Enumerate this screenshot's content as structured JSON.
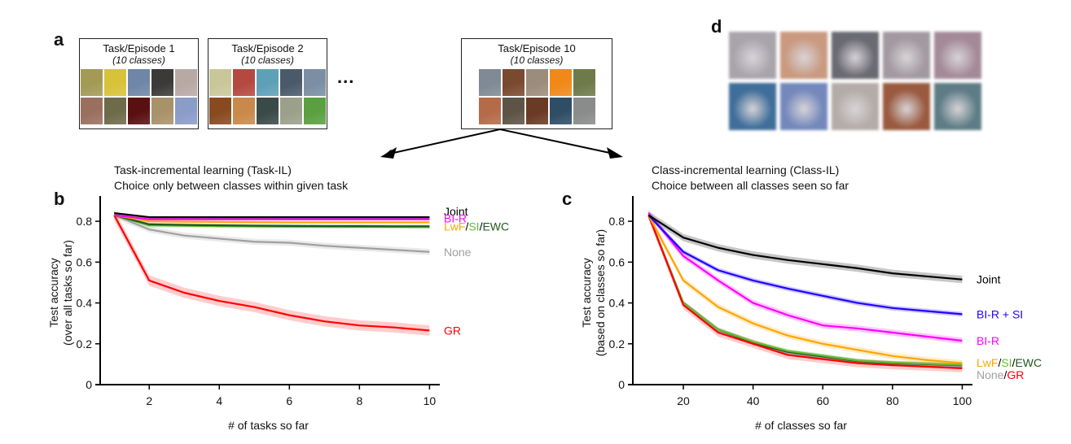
{
  "panels": {
    "a": {
      "label": "a"
    },
    "b": {
      "label": "b"
    },
    "c": {
      "label": "c"
    },
    "d": {
      "label": "d"
    }
  },
  "tasks": [
    {
      "title": "Task/Episode 1",
      "subtitle": "(10 classes)",
      "thumb_colors": [
        "#a39a55",
        "#d8c23a",
        "#6f86a8",
        "#3b3a38",
        "#b9a9a5",
        "#9b6f5e",
        "#6f6a48",
        "#5a0f10",
        "#a8926a",
        "#8a9cc8"
      ]
    },
    {
      "title": "Task/Episode 2",
      "subtitle": "(10 classes)",
      "thumb_colors": [
        "#c9c79a",
        "#b54940",
        "#5ea0b8",
        "#4a5a6a",
        "#7b8ea4",
        "#8a4a20",
        "#c9894a",
        "#3a4a48",
        "#9aa08a",
        "#5aa040"
      ]
    },
    {
      "title": "Task/Episode 10",
      "subtitle": "(10 classes)",
      "thumb_colors": [
        "#7f8a96",
        "#7a4a30",
        "#9c8c7c",
        "#f0891a",
        "#6f7a4a",
        "#b56a48",
        "#5e5446",
        "#6a3a22",
        "#2e4e66",
        "#8a8c8c"
      ]
    }
  ],
  "ellipsis": "...",
  "generated_samples": {
    "colors": [
      "#a9a4ac",
      "#c99a80",
      "#6a6a72",
      "#a29aa0",
      "#a48a98",
      "#3f6e9a",
      "#7488bc",
      "#b4aca8",
      "#9a5a40",
      "#5e7c86"
    ]
  },
  "task_il": {
    "heading_line1": "Task-incremental learning (Task-IL)",
    "heading_line2": "Choice only between classes within given task"
  },
  "class_il": {
    "heading_line1": "Class-incremental learning (Class-IL)",
    "heading_line2": "Choice between all classes seen so far"
  },
  "colors": {
    "joint": "#000000",
    "bir": "#ff00ff",
    "bir_si": "#2200ff",
    "lwf": "#ffa500",
    "si": "#66bb33",
    "ewc": "#1e5a1e",
    "none": "#a0a0a0",
    "gr": "#ff0000"
  },
  "chart_data": [
    {
      "type": "line",
      "panel": "b",
      "title": "Task-incremental learning (Task-IL)",
      "xlabel": "# of tasks so far",
      "ylabel_line1": "Test accuracy",
      "ylabel_line2": "(over all tasks so far)",
      "xlim": [
        0.6,
        10.2
      ],
      "ylim": [
        0,
        0.9
      ],
      "xticks": [
        2,
        4,
        6,
        8,
        10
      ],
      "xtick_labels": [
        "2",
        "4",
        "6",
        "8",
        "10"
      ],
      "yticks": [
        0,
        0.2,
        0.4,
        0.6,
        0.8
      ],
      "ytick_labels": [
        "0",
        "0.2",
        "0.4",
        "0.6",
        "0.8"
      ],
      "grid": false,
      "legend": "inline-right",
      "x": [
        1,
        2,
        3,
        4,
        5,
        6,
        7,
        8,
        9,
        10
      ],
      "series": [
        {
          "name": "None",
          "color_key": "none",
          "values": [
            0.83,
            0.76,
            0.73,
            0.715,
            0.7,
            0.695,
            0.68,
            0.67,
            0.66,
            0.65
          ],
          "band": 0.015
        },
        {
          "name": "GR",
          "color_key": "gr",
          "values": [
            0.83,
            0.51,
            0.45,
            0.41,
            0.38,
            0.34,
            0.31,
            0.29,
            0.28,
            0.265
          ],
          "band": 0.025
        },
        {
          "name": "SI",
          "color_key": "si",
          "values": [
            0.83,
            0.78,
            0.778,
            0.776,
            0.775,
            0.774,
            0.774,
            0.773,
            0.773,
            0.772
          ],
          "band": 0.01
        },
        {
          "name": "EWC",
          "color_key": "ewc",
          "values": [
            0.83,
            0.785,
            0.782,
            0.78,
            0.778,
            0.777,
            0.776,
            0.776,
            0.775,
            0.775
          ],
          "band": 0.008
        },
        {
          "name": "LwF",
          "color_key": "lwf",
          "values": [
            0.83,
            0.8,
            0.798,
            0.797,
            0.796,
            0.795,
            0.795,
            0.795,
            0.795,
            0.795
          ],
          "band": 0.006
        },
        {
          "name": "BI-R",
          "color_key": "bir",
          "values": [
            0.83,
            0.81,
            0.81,
            0.81,
            0.81,
            0.81,
            0.81,
            0.81,
            0.81,
            0.81
          ],
          "band": 0.006
        },
        {
          "name": "Joint",
          "color_key": "joint",
          "values": [
            0.84,
            0.82,
            0.82,
            0.82,
            0.82,
            0.82,
            0.82,
            0.82,
            0.82,
            0.82
          ],
          "band": 0.005
        }
      ],
      "labels": [
        {
          "parts": [
            {
              "text": "Joint",
              "color_key": "joint"
            }
          ],
          "y": 0.848
        },
        {
          "parts": [
            {
              "text": "BI-R",
              "color_key": "bir"
            }
          ],
          "y": 0.815
        },
        {
          "parts": [
            {
              "text": "LwF",
              "color_key": "lwf"
            },
            {
              "text": "/",
              "color_key": "joint"
            },
            {
              "text": "SI",
              "color_key": "si"
            },
            {
              "text": "/",
              "color_key": "joint"
            },
            {
              "text": "EWC",
              "color_key": "ewc"
            }
          ],
          "y": 0.775
        },
        {
          "parts": [
            {
              "text": "None",
              "color_key": "none"
            }
          ],
          "y": 0.65
        },
        {
          "parts": [
            {
              "text": "GR",
              "color_key": "gr"
            }
          ],
          "y": 0.265
        }
      ]
    },
    {
      "type": "line",
      "panel": "c",
      "title": "Class-incremental learning (Class-IL)",
      "xlabel": "# of classes so far",
      "ylabel_line1": "Test accuracy",
      "ylabel_line2": "(based on classes so far)",
      "xlim": [
        5.5,
        102
      ],
      "ylim": [
        0,
        0.9
      ],
      "xticks": [
        20,
        40,
        60,
        80,
        100
      ],
      "xtick_labels": [
        "20",
        "40",
        "60",
        "80",
        "100"
      ],
      "yticks": [
        0,
        0.2,
        0.4,
        0.6,
        0.8
      ],
      "ytick_labels": [
        "0",
        "0.2",
        "0.4",
        "0.6",
        "0.8"
      ],
      "grid": false,
      "legend": "inline-right",
      "x": [
        10,
        20,
        30,
        40,
        50,
        60,
        70,
        80,
        90,
        100
      ],
      "series": [
        {
          "name": "None",
          "color_key": "none",
          "values": [
            0.83,
            0.395,
            0.26,
            0.205,
            0.155,
            0.13,
            0.11,
            0.1,
            0.092,
            0.085
          ],
          "band": 0.01
        },
        {
          "name": "EWC",
          "color_key": "ewc",
          "values": [
            0.83,
            0.4,
            0.27,
            0.205,
            0.16,
            0.138,
            0.115,
            0.105,
            0.1,
            0.095
          ],
          "band": 0.01
        },
        {
          "name": "SI",
          "color_key": "si",
          "values": [
            0.83,
            0.4,
            0.27,
            0.21,
            0.165,
            0.142,
            0.118,
            0.108,
            0.102,
            0.097
          ],
          "band": 0.01
        },
        {
          "name": "GR",
          "color_key": "gr",
          "values": [
            0.83,
            0.39,
            0.255,
            0.2,
            0.145,
            0.125,
            0.105,
            0.095,
            0.088,
            0.08
          ],
          "band": 0.02
        },
        {
          "name": "LwF",
          "color_key": "lwf",
          "values": [
            0.83,
            0.51,
            0.38,
            0.3,
            0.24,
            0.2,
            0.17,
            0.14,
            0.12,
            0.105
          ],
          "band": 0.015
        },
        {
          "name": "BI-R",
          "color_key": "bir",
          "values": [
            0.84,
            0.63,
            0.51,
            0.4,
            0.34,
            0.29,
            0.275,
            0.255,
            0.235,
            0.215
          ],
          "band": 0.015
        },
        {
          "name": "BI-R + SI",
          "color_key": "bir_si",
          "values": [
            0.83,
            0.65,
            0.56,
            0.51,
            0.47,
            0.435,
            0.4,
            0.375,
            0.36,
            0.345
          ],
          "band": 0.012
        },
        {
          "name": "Joint",
          "color_key": "joint",
          "values": [
            0.83,
            0.72,
            0.67,
            0.635,
            0.61,
            0.59,
            0.57,
            0.545,
            0.53,
            0.515
          ],
          "band": 0.018
        }
      ],
      "labels": [
        {
          "parts": [
            {
              "text": "Joint",
              "color_key": "joint"
            }
          ],
          "y": 0.515
        },
        {
          "parts": [
            {
              "text": "BI-R + SI",
              "color_key": "bir_si"
            }
          ],
          "y": 0.345
        },
        {
          "parts": [
            {
              "text": "BI-R",
              "color_key": "bir"
            }
          ],
          "y": 0.215
        },
        {
          "parts": [
            {
              "text": "LwF",
              "color_key": "lwf"
            },
            {
              "text": "/",
              "color_key": "joint"
            },
            {
              "text": "SI",
              "color_key": "si"
            },
            {
              "text": "/",
              "color_key": "joint"
            },
            {
              "text": "EWC",
              "color_key": "ewc"
            }
          ],
          "y": 0.108
        },
        {
          "parts": [
            {
              "text": "None",
              "color_key": "none"
            },
            {
              "text": "/",
              "color_key": "joint"
            },
            {
              "text": "GR",
              "color_key": "gr"
            }
          ],
          "y": 0.048
        }
      ]
    }
  ]
}
